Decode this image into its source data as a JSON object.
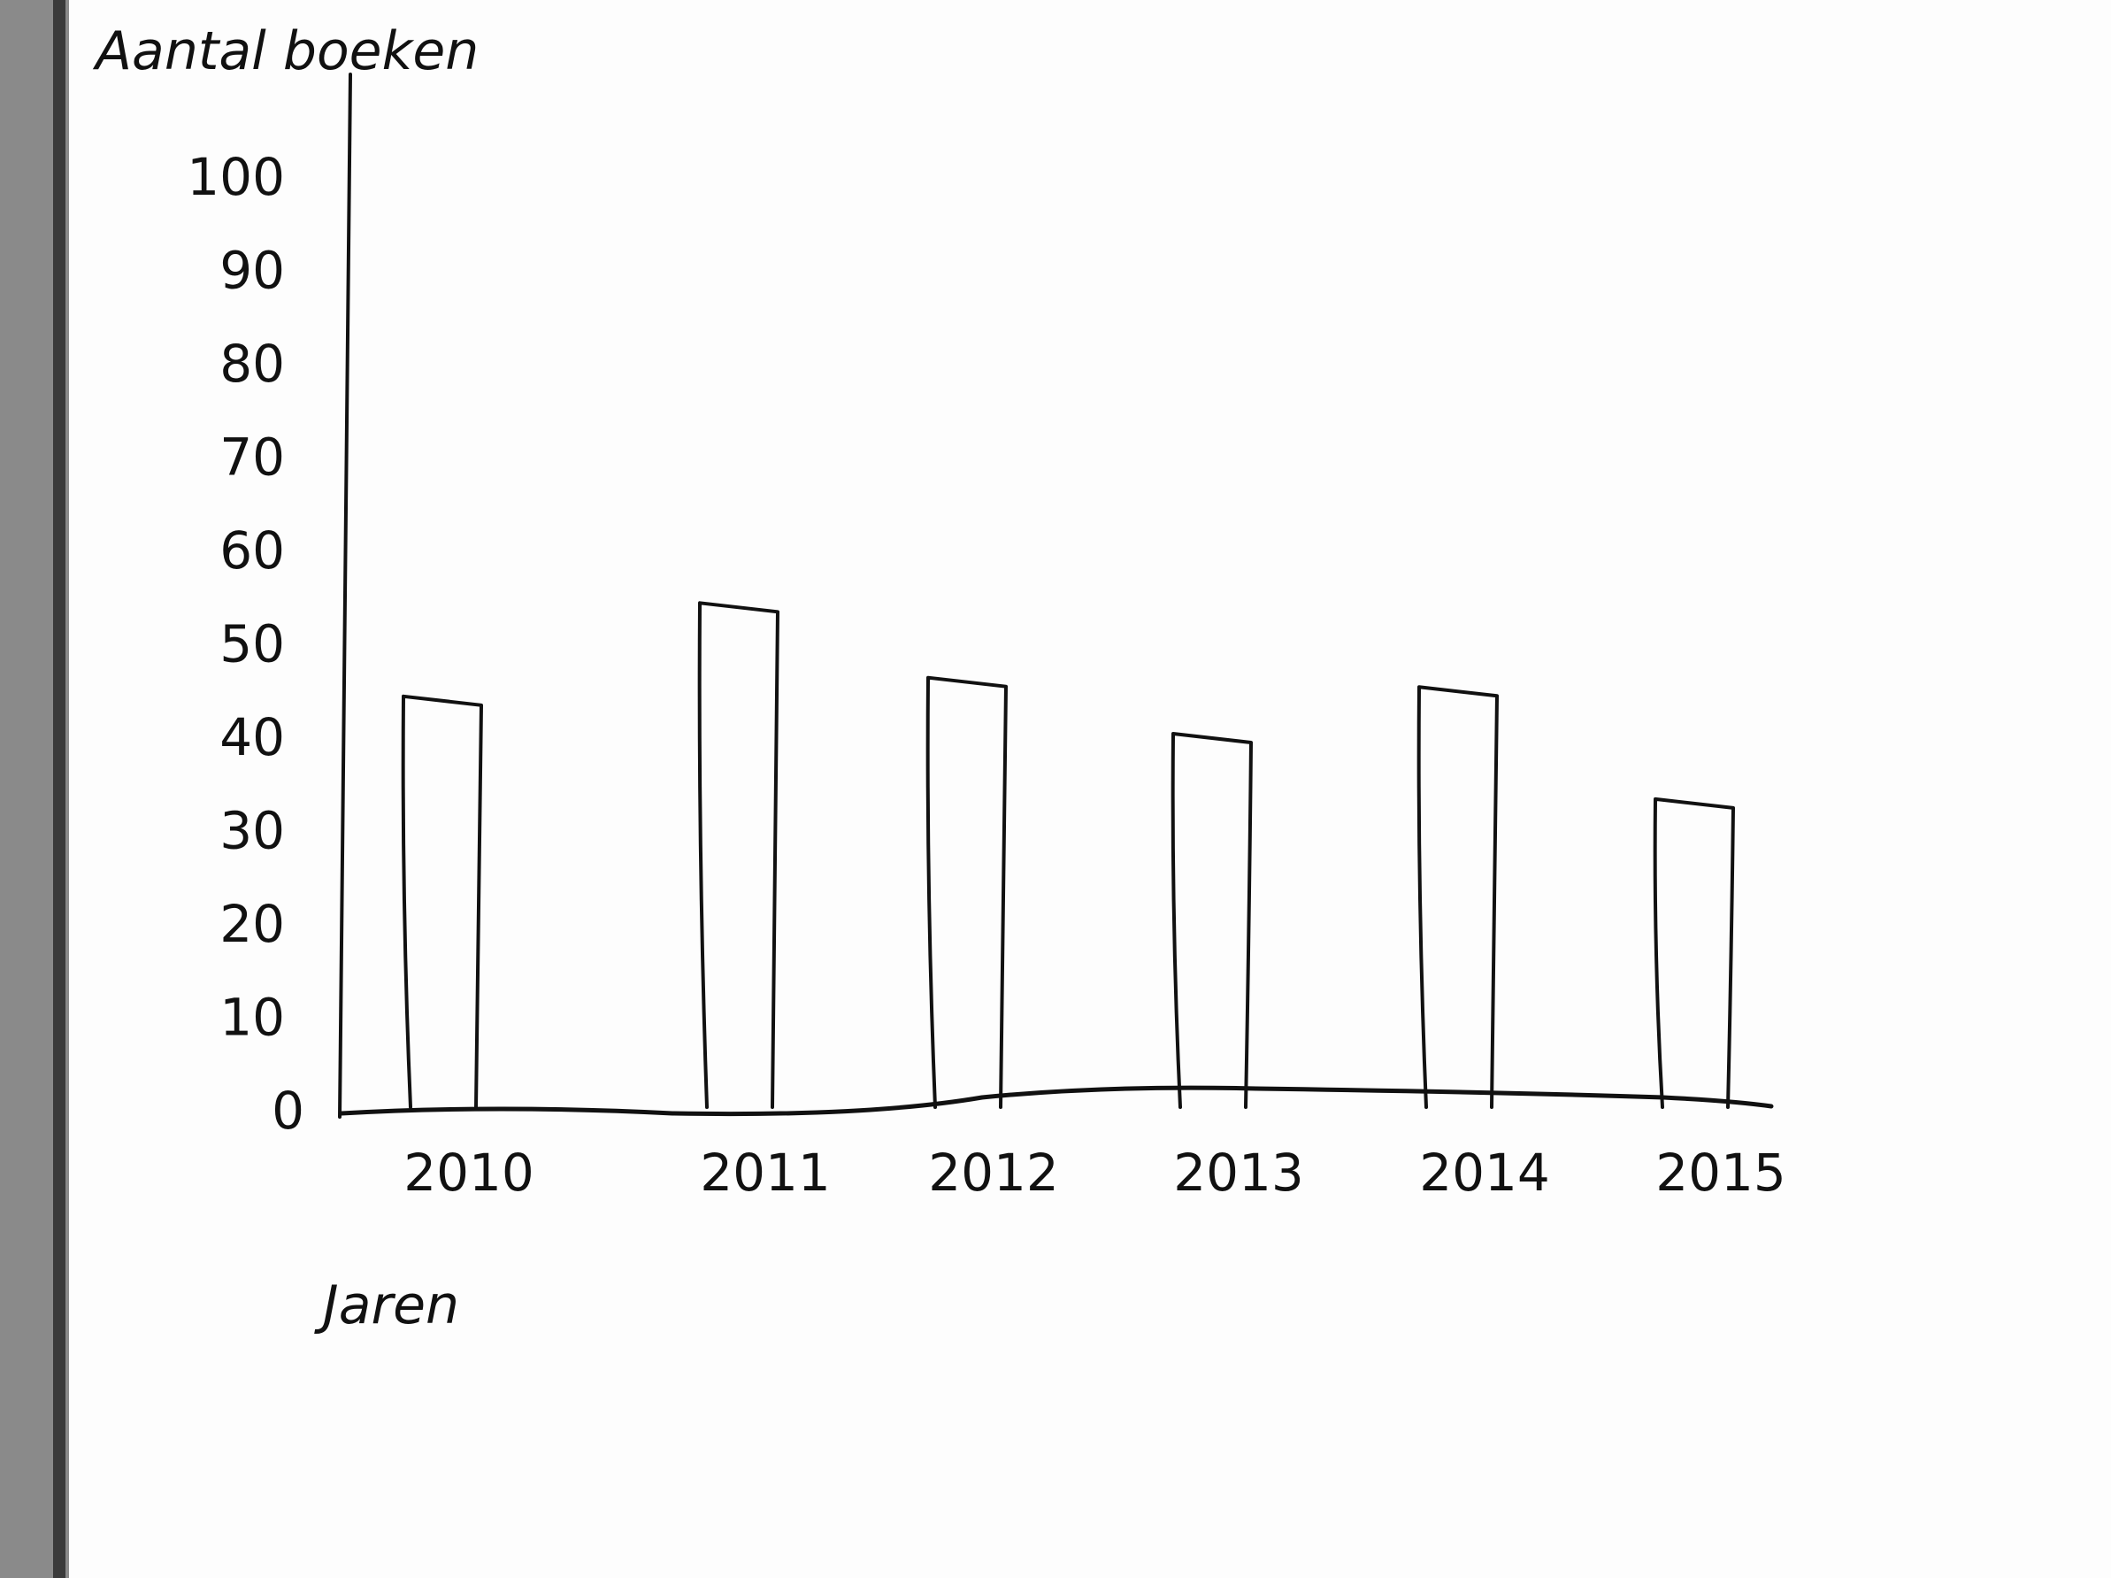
{
  "chart_data": {
    "type": "bar",
    "xlabel": "Jaren",
    "ylabel": "Aantal boeken",
    "categories": [
      "2010",
      "2011",
      "2012",
      "2013",
      "2014",
      "2015"
    ],
    "values": [
      44,
      54,
      46,
      40,
      45,
      33
    ],
    "ylim": [
      0,
      100
    ],
    "yticks": [
      "0",
      "10",
      "20",
      "30",
      "40",
      "50",
      "60",
      "70",
      "80",
      "90",
      "100"
    ],
    "grid": false,
    "legend": "none",
    "bar_fill": "#ffffff",
    "ink_color": "#111111"
  }
}
